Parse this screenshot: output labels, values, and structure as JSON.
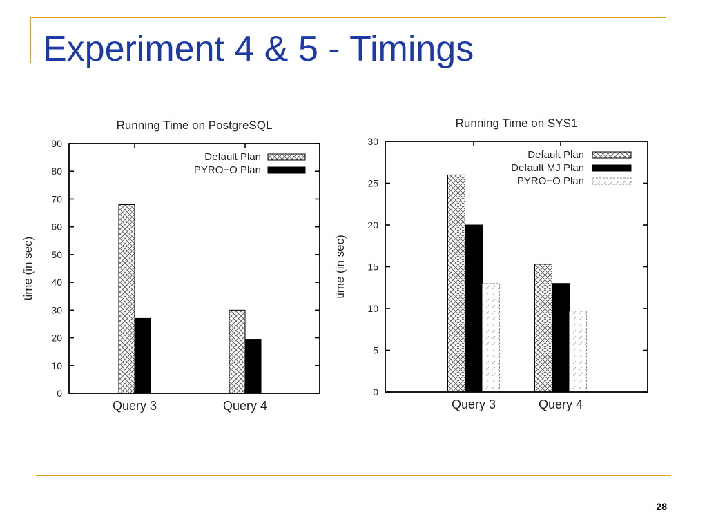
{
  "slide": {
    "title": "Experiment 4 & 5 - Timings",
    "page_number": "28"
  },
  "colors": {
    "accent_rule": "#e0a21c",
    "title_text": "#1b3aa6"
  },
  "chart_data": [
    {
      "type": "bar",
      "title": "Running Time on PostgreSQL",
      "xlabel": "",
      "ylabel": "time (in sec)",
      "categories": [
        "Query 3",
        "Query 4"
      ],
      "ylim": [
        0,
        90
      ],
      "yticks": [
        0,
        10,
        20,
        30,
        40,
        50,
        60,
        70,
        80,
        90
      ],
      "legend_position": "top-right",
      "grid": false,
      "series": [
        {
          "name": "Default Plan",
          "values": [
            68,
            30
          ],
          "pattern": "crosshatch"
        },
        {
          "name": "PYRO−O Plan",
          "values": [
            27,
            19.5
          ],
          "pattern": "solid"
        }
      ]
    },
    {
      "type": "bar",
      "title": "Running Time on SYS1",
      "xlabel": "",
      "ylabel": "time (in sec)",
      "categories": [
        "Query 3",
        "Query 4"
      ],
      "ylim": [
        0,
        30
      ],
      "yticks": [
        0,
        5,
        10,
        15,
        20,
        25,
        30
      ],
      "legend_position": "top-right",
      "grid": false,
      "series": [
        {
          "name": "Default Plan",
          "values": [
            26,
            15.3
          ],
          "pattern": "crosshatch"
        },
        {
          "name": "Default MJ Plan",
          "values": [
            20,
            13
          ],
          "pattern": "solid"
        },
        {
          "name": "PYRO−O Plan",
          "values": [
            13,
            9.7
          ],
          "pattern": "dashed"
        }
      ]
    }
  ]
}
